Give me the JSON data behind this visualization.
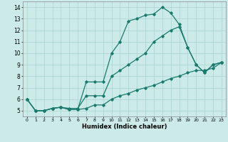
{
  "xlabel": "Humidex (Indice chaleur)",
  "xlim": [
    -0.5,
    23.5
  ],
  "ylim": [
    4.5,
    14.5
  ],
  "xticks": [
    0,
    1,
    2,
    3,
    4,
    5,
    6,
    7,
    8,
    9,
    10,
    11,
    12,
    13,
    14,
    15,
    16,
    17,
    18,
    19,
    20,
    21,
    22,
    23
  ],
  "yticks": [
    5,
    6,
    7,
    8,
    9,
    10,
    11,
    12,
    13,
    14
  ],
  "bg_color": "#cceae8",
  "grid_color": "#aad4d0",
  "line_color": "#1a7a6e",
  "line1_x": [
    0,
    1,
    2,
    3,
    4,
    5,
    6,
    7,
    8,
    9,
    10,
    11,
    12,
    13,
    14,
    15,
    16,
    17,
    18,
    19,
    20,
    21,
    22,
    23
  ],
  "line1_y": [
    6.0,
    5.0,
    5.0,
    5.2,
    5.3,
    5.1,
    5.1,
    7.5,
    7.5,
    7.5,
    10.0,
    11.0,
    12.8,
    13.0,
    13.3,
    13.4,
    14.0,
    13.5,
    12.5,
    10.5,
    9.0,
    8.3,
    9.0,
    9.2
  ],
  "line2_x": [
    0,
    1,
    2,
    3,
    4,
    5,
    6,
    7,
    8,
    9,
    10,
    11,
    12,
    13,
    14,
    15,
    16,
    17,
    18,
    19,
    20,
    21,
    22,
    23
  ],
  "line2_y": [
    6.0,
    5.0,
    5.0,
    5.2,
    5.3,
    5.2,
    5.2,
    6.3,
    6.3,
    6.3,
    8.0,
    8.5,
    9.0,
    9.5,
    10.0,
    11.0,
    11.5,
    12.0,
    12.3,
    10.5,
    9.0,
    8.3,
    9.0,
    9.2
  ],
  "line3_x": [
    0,
    1,
    2,
    3,
    4,
    5,
    6,
    7,
    8,
    9,
    10,
    11,
    12,
    13,
    14,
    15,
    16,
    17,
    18,
    19,
    20,
    21,
    22,
    23
  ],
  "line3_y": [
    6.0,
    5.0,
    5.0,
    5.2,
    5.3,
    5.1,
    5.1,
    5.2,
    5.5,
    5.5,
    6.0,
    6.3,
    6.5,
    6.8,
    7.0,
    7.2,
    7.5,
    7.8,
    8.0,
    8.3,
    8.5,
    8.5,
    8.7,
    9.2
  ]
}
